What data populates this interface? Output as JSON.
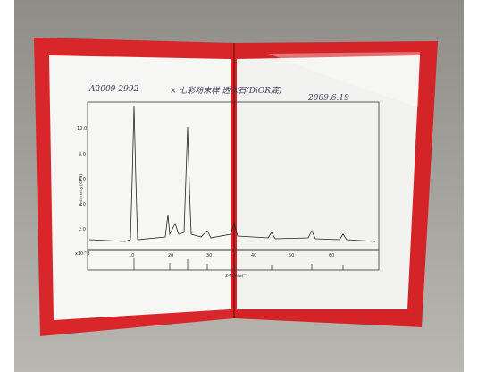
{
  "header": {
    "sample_id": "A2009-2992",
    "note": "× 七彩粉末样 透水石(DiOR底)",
    "date": "2009.6.19"
  },
  "chart": {
    "y_axis_label": "Intensity(CPS)",
    "y_ticks": [
      "10.0",
      "8.0",
      "6.0",
      "4.0",
      "2.0"
    ],
    "scale_note": "x10^3",
    "x_ticks": [
      "10",
      "20",
      "30",
      "40",
      "50",
      "60"
    ],
    "x_axis_label": "2-Theta(°)"
  }
}
